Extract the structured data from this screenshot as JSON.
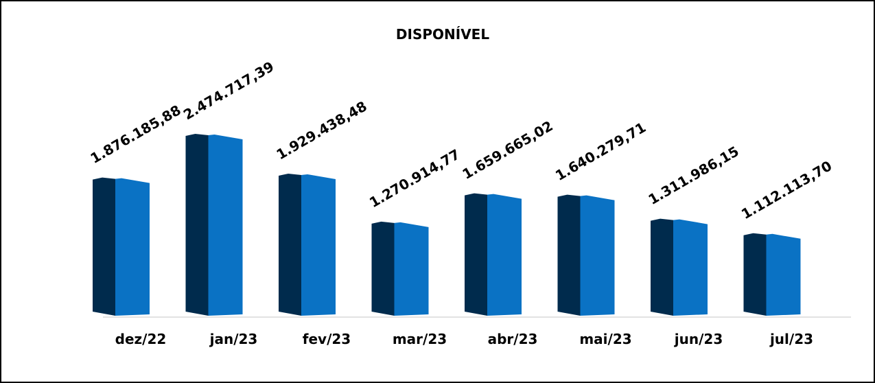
{
  "chart_data": {
    "type": "bar",
    "title": "DISPONÍVEL",
    "categories": [
      "dez/22",
      "jan/23",
      "fev/23",
      "mar/23",
      "abr/23",
      "mai/23",
      "jun/23",
      "jul/23"
    ],
    "values": [
      1876185.88,
      2474717.39,
      1929438.48,
      1270914.77,
      1659665.02,
      1640279.71,
      1311986.15,
      1112113.7
    ],
    "value_labels": [
      "1.876.185,88",
      "2.474.717,39",
      "1.929.438,48",
      "1.270.914,77",
      "1.659.665,02",
      "1.640.279,71",
      "1.311.986,15",
      "1.112.113,70"
    ],
    "color": "#0a72c4"
  }
}
